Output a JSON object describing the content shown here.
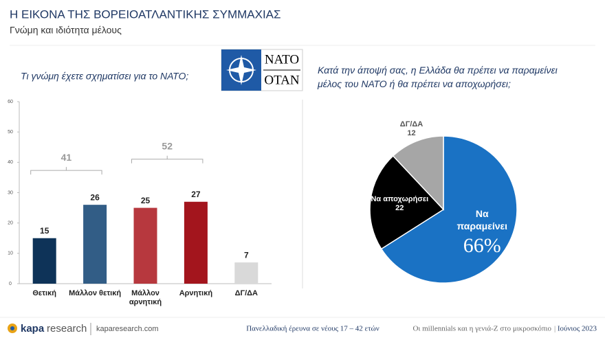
{
  "header": {
    "title": "Η ΕΙΚΟΝΑ ΤΗΣ ΒΟΡΕΙΟΑΤΛΑΝΤΙΚΗΣ ΣΥΜΜΑΧΙΑΣ",
    "subtitle": "Γνώμη και ιδιότητα μέλους"
  },
  "logo": {
    "top": "NATO",
    "bottom": "OTAN"
  },
  "chart_data": [
    {
      "type": "bar",
      "title": "Τι γνώμη έχετε σχηματίσει για το ΝΑΤΟ;",
      "categories": [
        "Θετική",
        "Μάλλον θετική",
        "Μάλλον αρνητική",
        "Αρνητική",
        "ΔΓ/ΔΑ"
      ],
      "values": [
        15,
        26,
        25,
        27,
        7
      ],
      "colors": [
        "#0e3358",
        "#325d86",
        "#b7383e",
        "#a3151d",
        "#d9d9d9"
      ],
      "ylim": [
        0,
        60
      ],
      "yticks": [
        0,
        10,
        20,
        30,
        40,
        50,
        60
      ],
      "grid": false,
      "brackets": [
        {
          "value": 41,
          "categories": [
            "Θετική",
            "Μάλλον θετική"
          ]
        },
        {
          "value": 52,
          "categories": [
            "Μάλλον αρνητική",
            "Αρνητική"
          ]
        }
      ]
    },
    {
      "type": "pie",
      "title": "Κατά την άποψή σας, η Ελλάδα θα πρέπει να παραμείνει μέλος του ΝΑΤΟ ή θα πρέπει να αποχωρήσει;",
      "categories": [
        "Να παραμείνει",
        "Να αποχωρήσει",
        "ΔΓ/ΔΑ"
      ],
      "values": [
        66,
        22,
        12
      ],
      "value_labels": [
        "66%",
        "22",
        "12"
      ],
      "colors": [
        "#1a72c4",
        "#000000",
        "#a6a6a6"
      ]
    }
  ],
  "footer": {
    "brand_a": "kapa",
    "brand_b": "research",
    "site": "kaparesearch.com",
    "survey": "Πανελλαδική έρευνα σε νέους 17 – 42 ετών",
    "series": "Οι millennials και η γενιά-Z στο μικροσκόπιο",
    "date": "Ιούνιος 2023"
  }
}
